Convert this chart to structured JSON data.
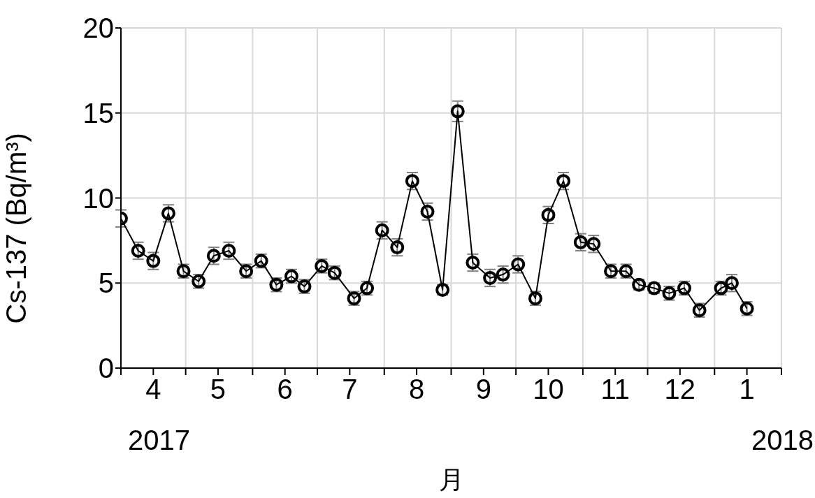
{
  "chart_data": {
    "type": "line",
    "ylabel": "Cs-137 (Bq/m³)",
    "xlabel": "月",
    "annotations": [
      "2017",
      "2018"
    ],
    "x": [
      "2017-04-01",
      "2017-04-09",
      "2017-04-16",
      "2017-04-23",
      "2017-04-30",
      "2017-05-07",
      "2017-05-14",
      "2017-05-21",
      "2017-05-29",
      "2017-06-05",
      "2017-06-12",
      "2017-06-19",
      "2017-06-25",
      "2017-07-03",
      "2017-07-09",
      "2017-07-18",
      "2017-07-24",
      "2017-07-31",
      "2017-08-07",
      "2017-08-14",
      "2017-08-21",
      "2017-08-28",
      "2017-09-04",
      "2017-09-11",
      "2017-09-19",
      "2017-09-25",
      "2017-10-02",
      "2017-10-10",
      "2017-10-16",
      "2017-10-23",
      "2017-10-31",
      "2017-11-06",
      "2017-11-14",
      "2017-11-21",
      "2017-11-27",
      "2017-12-04",
      "2017-12-11",
      "2017-12-18",
      "2017-12-25",
      "2018-01-04",
      "2018-01-09",
      "2018-01-16"
    ],
    "series": [
      {
        "color": "#000000",
        "values": [
          8.8,
          6.9,
          6.3,
          9.1,
          5.7,
          5.1,
          6.6,
          6.9,
          5.7,
          6.3,
          4.9,
          5.4,
          4.8,
          6.0,
          5.6,
          4.1,
          4.7,
          8.1,
          7.1,
          11.0,
          9.2,
          4.6,
          15.1,
          6.2,
          5.3,
          5.5,
          6.1,
          4.1,
          9.0,
          11.0,
          7.4,
          7.3,
          5.7,
          5.7,
          4.9,
          4.7,
          4.4,
          4.7,
          3.4,
          4.7,
          5.0,
          3.5
        ],
        "errors": [
          0.5,
          0.5,
          0.5,
          0.5,
          0.4,
          0.4,
          0.5,
          0.5,
          0.4,
          0.4,
          0.4,
          0.4,
          0.4,
          0.4,
          0.4,
          0.4,
          0.4,
          0.5,
          0.5,
          0.5,
          0.5,
          0.3,
          0.6,
          0.5,
          0.5,
          0.5,
          0.5,
          0.4,
          0.5,
          0.5,
          0.5,
          0.5,
          0.4,
          0.4,
          0.3,
          0.3,
          0.4,
          0.4,
          0.4,
          0.4,
          0.5,
          0.4
        ]
      }
    ],
    "xlim": [
      "2017-04-01",
      "2018-02-01"
    ],
    "xticks": [
      {
        "value": "2017-04-01",
        "label": null
      },
      {
        "value": "2017-04-16",
        "label": "4"
      },
      {
        "value": "2017-05-01",
        "label": null
      },
      {
        "value": "2017-05-16",
        "label": "5"
      },
      {
        "value": "2017-06-01",
        "label": null
      },
      {
        "value": "2017-06-16",
        "label": "6"
      },
      {
        "value": "2017-07-01",
        "label": null
      },
      {
        "value": "2017-07-16",
        "label": "7"
      },
      {
        "value": "2017-08-01",
        "label": null
      },
      {
        "value": "2017-08-16",
        "label": "8"
      },
      {
        "value": "2017-09-01",
        "label": null
      },
      {
        "value": "2017-09-16",
        "label": "9"
      },
      {
        "value": "2017-10-01",
        "label": null
      },
      {
        "value": "2017-10-16",
        "label": "10"
      },
      {
        "value": "2017-11-01",
        "label": null
      },
      {
        "value": "2017-11-16",
        "label": "11"
      },
      {
        "value": "2017-12-01",
        "label": null
      },
      {
        "value": "2017-12-16",
        "label": "12"
      },
      {
        "value": "2018-01-01",
        "label": null
      },
      {
        "value": "2018-01-16",
        "label": "1"
      },
      {
        "value": "2018-02-01",
        "label": null
      }
    ],
    "ylim": [
      0,
      20
    ],
    "yticks": [
      0,
      5,
      10,
      15,
      20
    ],
    "grid": true,
    "marker": "circle",
    "line_style": "solid",
    "legend": false
  }
}
